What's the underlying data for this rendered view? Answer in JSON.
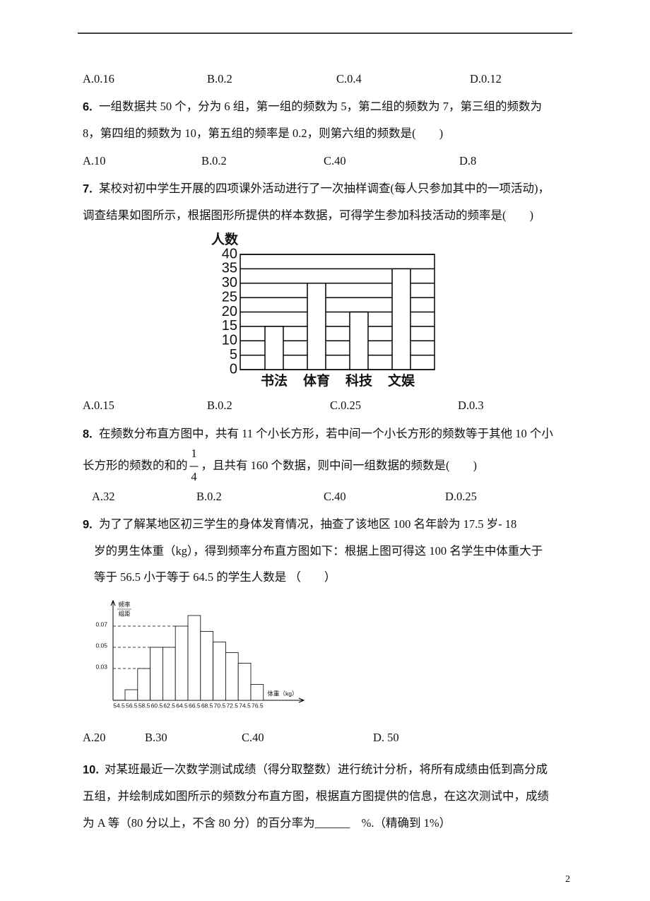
{
  "questions": [
    {
      "options": [
        "A.0.16",
        "B.0.2",
        "C.0.4",
        "D.0.12"
      ]
    },
    {
      "number": "6.",
      "lines": [
        "一组数据共 50 个，分为 6 组，第一组的频数为 5，第二组的频数为 7，第三组的频数为",
        "8，第四组的频数为 10，第五组的频率是 0.2，则第六组的频数是(　　)"
      ],
      "options": [
        "A.10",
        "B.0.2",
        "C.40",
        "D.8"
      ]
    },
    {
      "number": "7.",
      "lines": [
        "某校对初中学生开展的四项课外活动进行了一次抽样调查(每人只参加其中的一项活动)，",
        "调查结果如图所示，根据图形所提供的样本数据，可得学生参加科技活动的频率是(　　)"
      ],
      "chart": {
        "type": "bar",
        "ylabel": "人数",
        "categories": [
          "书法",
          "体育",
          "科技",
          "文娱"
        ],
        "values": [
          15,
          30,
          20,
          35
        ],
        "ylim": [
          0,
          40
        ],
        "yticks": [
          0,
          5,
          10,
          15,
          20,
          25,
          30,
          35,
          40
        ],
        "grid": true,
        "color": "#ffffff"
      },
      "options": [
        "A.0.15",
        "B.0.2",
        "C.0.25",
        "D.0.3"
      ]
    },
    {
      "number": "8.",
      "lines": [
        "在频数分布直方图中，共有 11 个小长方形，若中间一个小长方形的频数等于其他 10 个小",
        {
          "before": "长方形的频数的和的",
          "fraction": {
            "numerator": "1",
            "denominator": "4"
          },
          "after": "，且共有 160 个数据，则中间一组数据的频数是(　　)"
        }
      ],
      "options": [
        "A.32",
        "B.0.2",
        "C.40",
        "D.0.25"
      ]
    },
    {
      "number": "9.",
      "lines": [
        "为了了解某地区初三学生的身体发育情况，抽查了该地区 100 名年龄为 17.5 岁- 18",
        "岁的男生体重（kg），得到频率分布直方图如下：根据上图可得这 100 名学生中体重大于",
        "等于 56.5 小于等于 64.5 的学生人数是 （　　）"
      ],
      "chart": {
        "type": "histogram",
        "ylabel": [
          "频率",
          "组距"
        ],
        "xlabel": "体重（kg）",
        "bins": [
          54.5,
          56.5,
          58.5,
          60.5,
          62.5,
          64.5,
          66.5,
          68.5,
          70.5,
          72.5,
          74.5,
          76.5
        ],
        "values": [
          0.01,
          0.03,
          0.05,
          0.05,
          0.07,
          0.08,
          0.065,
          0.055,
          0.045,
          0.035,
          0.015
        ],
        "ylim": [
          0,
          0.09
        ],
        "yticks": [
          0.03,
          0.05,
          0.07
        ],
        "xticks": [
          54.5,
          56.5,
          58.5,
          60.5,
          62.5,
          64.5,
          66.5,
          68.5,
          70.5,
          72.5,
          74.5,
          76.5
        ],
        "color": "#ffffff"
      },
      "options": [
        "A.20",
        "B.30",
        "C.40",
        "D. 50"
      ]
    },
    {
      "number": "10.",
      "lines": [
        "对某班最近一次数学测试成绩（得分取整数）进行统计分析，将所有成绩由低到高分成",
        "五组，并绘制成如图所示的频数分布直方图，根据直方图提供的信息，在这次测试中，成绩",
        "为 A 等（80 分以上，不含 80 分）的百分率为______　%.（精确到 1%）"
      ]
    }
  ],
  "page_number": "2"
}
